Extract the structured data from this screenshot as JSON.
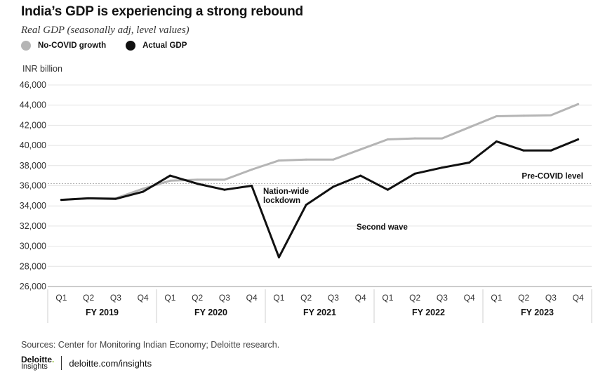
{
  "title": "India’s GDP is experiencing a strong rebound",
  "subtitle": "Real GDP (seasonally adj, level values)",
  "legend": [
    {
      "label": "No-COVID growth",
      "color": "#b5b5b5"
    },
    {
      "label": "Actual GDP",
      "color": "#111111"
    }
  ],
  "source": "Sources: Center for Monitoring Indian Economy; Deloitte research.",
  "brand": {
    "line1": "Deloitte",
    "dot": ".",
    "line2": "Insights",
    "url": "deloitte.com/insights"
  },
  "chart_data": {
    "type": "line",
    "ylabel": "INR billion",
    "ylim": [
      26000,
      46000
    ],
    "yticks": [
      "26,000",
      "28,000",
      "30,000",
      "32,000",
      "34,000",
      "36,000",
      "38,000",
      "40,000",
      "42,000",
      "44,000",
      "46,000"
    ],
    "categories": [
      "Q1",
      "Q2",
      "Q3",
      "Q4",
      "Q1",
      "Q2",
      "Q3",
      "Q4",
      "Q1",
      "Q2",
      "Q3",
      "Q4",
      "Q1",
      "Q2",
      "Q3",
      "Q4",
      "Q1",
      "Q2",
      "Q3",
      "Q4"
    ],
    "groups": [
      "FY 2019",
      "FY 2020",
      "FY 2021",
      "FY 2022",
      "FY 2023"
    ],
    "grid": true,
    "series": [
      {
        "name": "No-COVID growth",
        "color": "#b5b5b5",
        "values": [
          34600,
          34750,
          34750,
          35700,
          36500,
          36600,
          36600,
          37600,
          38500,
          38600,
          38600,
          39600,
          40600,
          40700,
          40700,
          41800,
          42900,
          42950,
          43000,
          44100
        ]
      },
      {
        "name": "Actual GDP",
        "color": "#111111",
        "values": [
          34600,
          34750,
          34700,
          35400,
          37000,
          36200,
          35600,
          36000,
          28900,
          34100,
          35900,
          37000,
          35600,
          37200,
          37800,
          38300,
          40400,
          39500,
          39500,
          40600
        ]
      }
    ],
    "reference_line": {
      "label": "Pre-COVID level",
      "value": 36200
    },
    "annotations": [
      {
        "text_lines": [
          "Nation-wide",
          "lockdown"
        ],
        "name": "annotation-lockdown"
      },
      {
        "text_lines": [
          "Second wave"
        ],
        "name": "annotation-second-wave"
      }
    ]
  }
}
